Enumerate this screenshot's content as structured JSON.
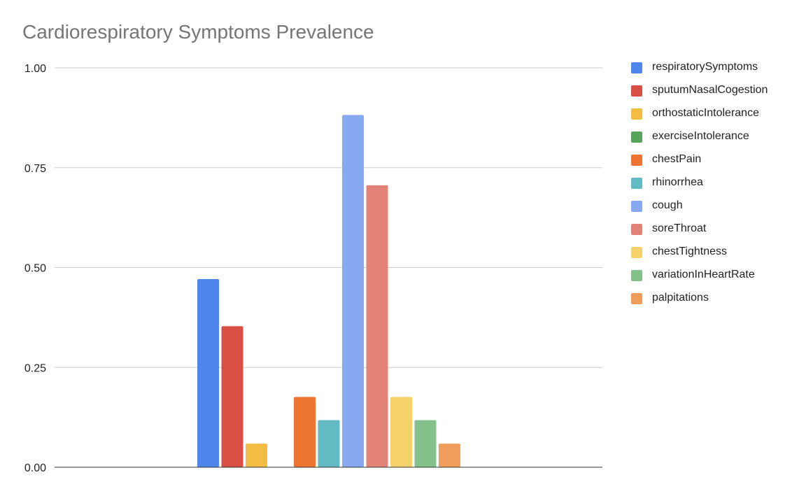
{
  "chart_data": {
    "type": "bar",
    "title": "Cardiorespiratory Symptoms Prevalence",
    "xlabel": "",
    "ylabel": "",
    "ylim": [
      0,
      1
    ],
    "yticks": [
      "0.00",
      "0.25",
      "0.50",
      "0.75",
      "1.00"
    ],
    "grid": true,
    "legend_position": "right",
    "categories": [
      ""
    ],
    "series": [
      {
        "name": "respiratorySymptoms",
        "values": [
          0.471
        ],
        "color": "#4e86ec"
      },
      {
        "name": "sputumNasalCogestion",
        "values": [
          0.353
        ],
        "color": "#da4f43"
      },
      {
        "name": "orthostaticIntolerance",
        "values": [
          0.059
        ],
        "color": "#f2bd42"
      },
      {
        "name": "exerciseIntolerance",
        "values": [
          0.0
        ],
        "color": "#57a55a"
      },
      {
        "name": "chestPain",
        "values": [
          0.176
        ],
        "color": "#ed7431"
      },
      {
        "name": "rhinorrhea",
        "values": [
          0.118
        ],
        "color": "#62bac3"
      },
      {
        "name": "cough",
        "values": [
          0.882
        ],
        "color": "#86a9f0"
      },
      {
        "name": "soreThroat",
        "values": [
          0.706
        ],
        "color": "#e38377"
      },
      {
        "name": "chestTightness",
        "values": [
          0.176
        ],
        "color": "#f5d16a"
      },
      {
        "name": "variationInHeartRate",
        "values": [
          0.118
        ],
        "color": "#84c08a"
      },
      {
        "name": "palpitations",
        "values": [
          0.059
        ],
        "color": "#f09c5a"
      }
    ]
  }
}
